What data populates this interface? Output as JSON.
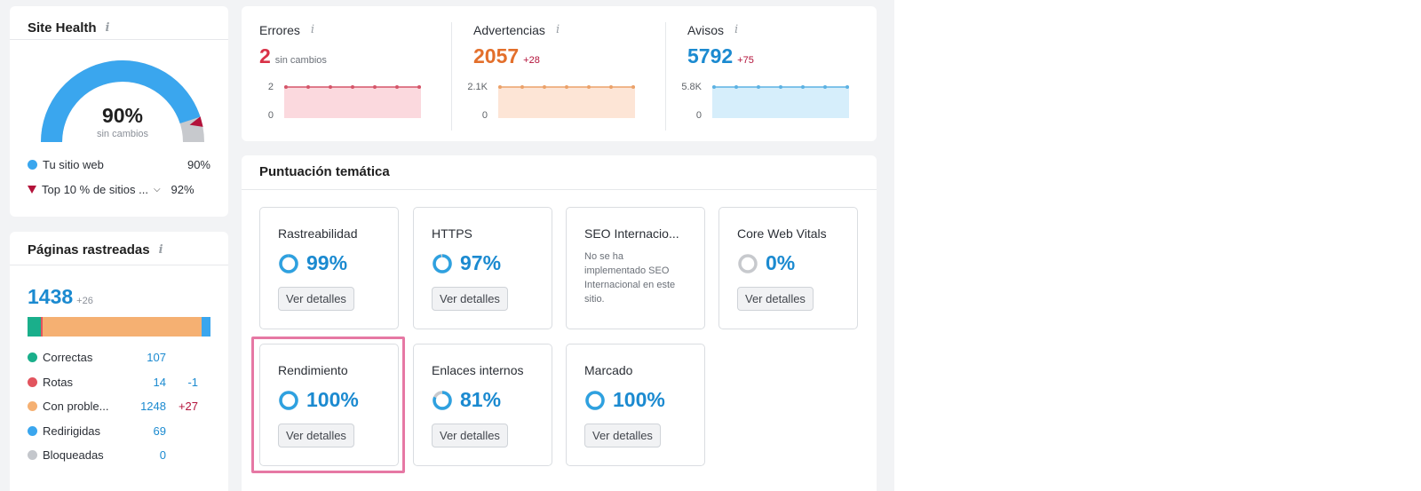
{
  "site_health": {
    "title": "Site Health",
    "info_icon": "i",
    "gauge_percent": "90%",
    "gauge_sub": "sin cambios",
    "gauge_value": 0.9,
    "legend": [
      {
        "label": "Tu sitio web",
        "value": "90%",
        "color": "#3aa6ee"
      },
      {
        "label": "Top 10 % de sitios ...",
        "value": "92%",
        "color": "#b3123a"
      }
    ]
  },
  "crawled": {
    "title": "Páginas rastreadas",
    "info_icon": "i",
    "total": "1438",
    "total_delta": "+26",
    "rows": [
      {
        "label": "Correctas",
        "value": "107",
        "delta": "",
        "color": "#1aaf8b",
        "share": 107
      },
      {
        "label": "Rotas",
        "value": "14",
        "delta": "-1",
        "color": "#e2545e",
        "share": 14
      },
      {
        "label": "Con proble...",
        "value": "1248",
        "delta": "+27",
        "color": "#f5b072",
        "share": 1248
      },
      {
        "label": "Redirigidas",
        "value": "69",
        "delta": "",
        "color": "#3aa6ee",
        "share": 69
      },
      {
        "label": "Bloqueadas",
        "value": "0",
        "delta": "",
        "color": "#c4c7cc",
        "share": 0
      }
    ]
  },
  "metrics": [
    {
      "label": "Errores",
      "value": "2",
      "sub": "sin cambios",
      "color": "#d93147",
      "max_label": "2",
      "min_label": "0",
      "line": "#d5566a",
      "fill": "#fbd9de"
    },
    {
      "label": "Advertencias",
      "value": "2057",
      "sub": "+28",
      "color": "#e36f2b",
      "max_label": "2.1K",
      "min_label": "0",
      "line": "#eba26a",
      "fill": "#fde5d6"
    },
    {
      "label": "Avisos",
      "value": "5792",
      "sub": "+75",
      "color": "#1b8ad0",
      "max_label": "5.8K",
      "min_label": "0",
      "line": "#5db2e3",
      "fill": "#d6eefb"
    }
  ],
  "thematic": {
    "title": "Puntuación temática",
    "button_label": "Ver detalles",
    "tiles": [
      {
        "name": "Rastreabilidad",
        "score": "99%",
        "value": 0.99,
        "button": "Ver detalles"
      },
      {
        "name": "HTTPS",
        "score": "97%",
        "value": 0.97,
        "button": "Ver detalles"
      },
      {
        "name": "SEO Internacio...",
        "note": "No se ha implementado SEO Internacional en este sitio."
      },
      {
        "name": "Core Web Vitals",
        "score": "0%",
        "value": 0,
        "button": "Ver detalles"
      },
      {
        "name": "Rendimiento",
        "score": "100%",
        "value": 1,
        "button": "Ver detalles"
      },
      {
        "name": "Enlaces internos",
        "score": "81%",
        "value": 0.81,
        "button": "Ver detalles"
      },
      {
        "name": "Marcado",
        "score": "100%",
        "value": 1,
        "button": "Ver detalles"
      }
    ]
  },
  "colors": {
    "accent": "#1b8ad0",
    "highlight": "#e678a4"
  }
}
